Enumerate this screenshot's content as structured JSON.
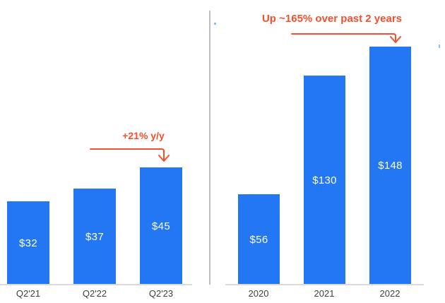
{
  "colors": {
    "background": "#ffffff",
    "bar": "#2377f3",
    "value_label": "#ffffff",
    "category_label": "#3c4043",
    "annotation": "#f4502e",
    "axis_line": "#dadada",
    "divider": "#bdbdbd"
  },
  "chart_data": [
    {
      "type": "bar",
      "title": "",
      "categories": [
        "Q2'21",
        "Q2'22",
        "Q2'23"
      ],
      "values": [
        32,
        37,
        45
      ],
      "value_labels": [
        "$32",
        "$37",
        "$45"
      ],
      "annotation": "+21% y/y",
      "xlabel": "",
      "ylabel": "",
      "legend_position": "none",
      "grid": false,
      "y_axis_visible": false
    },
    {
      "type": "bar",
      "title": "",
      "categories": [
        "2020",
        "2021",
        "2022"
      ],
      "values": [
        56,
        130,
        148
      ],
      "value_labels": [
        "$56",
        "$130",
        "$148"
      ],
      "annotation": "Up ~165% over past 2 years",
      "xlabel": "",
      "ylabel": "",
      "legend_position": "none",
      "grid": false,
      "y_axis_visible": false
    }
  ]
}
